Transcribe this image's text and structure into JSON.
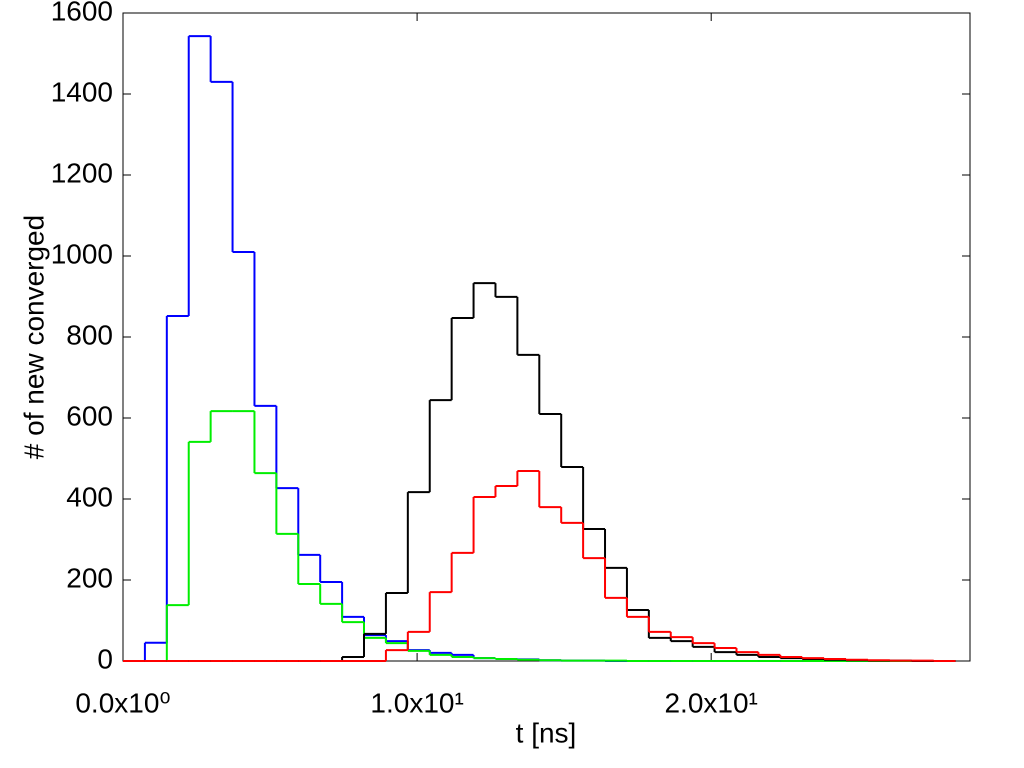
{
  "chart_data": {
    "type": "histogram",
    "xlabel": "t [ns]",
    "ylabel": "# of new converged",
    "bins": [
      0,
      0.745,
      1.49,
      2.235,
      2.98,
      3.725,
      4.47,
      5.215,
      5.96,
      6.705,
      7.45,
      8.195,
      8.94,
      9.685,
      10.43,
      11.175,
      11.92,
      12.665,
      13.41,
      14.155,
      14.9,
      15.645,
      16.39,
      17.135,
      17.88,
      18.625,
      19.37,
      20.115,
      20.86,
      21.605,
      22.35,
      23.095,
      23.84,
      24.585,
      25.33,
      26.075,
      26.82,
      27.565,
      28.31
    ],
    "series": [
      {
        "color": "#0000ff",
        "values": [
          0,
          45,
          852,
          1543,
          1430,
          1010,
          630,
          427,
          262,
          195,
          109,
          64,
          49,
          27,
          20,
          15,
          7,
          5,
          4,
          2,
          1,
          1,
          0,
          0,
          0,
          0,
          0,
          0,
          0,
          0,
          0,
          0,
          0,
          0,
          0,
          0,
          0,
          0
        ]
      },
      {
        "color": "#00ee00",
        "values": [
          0,
          0,
          138,
          541,
          617,
          617,
          464,
          314,
          190,
          141,
          96,
          57,
          44,
          25,
          15,
          10,
          7,
          5,
          3,
          2,
          1,
          1,
          1,
          0,
          0,
          0,
          0,
          0,
          0,
          0,
          0,
          0,
          0,
          0,
          0,
          0,
          0,
          0
        ]
      },
      {
        "color": "#000000",
        "values": [
          0,
          0,
          0,
          0,
          0,
          0,
          0,
          0,
          0,
          0,
          10,
          67,
          168,
          417,
          644,
          847,
          933,
          899,
          756,
          610,
          479,
          326,
          230,
          126,
          57,
          49,
          35,
          22,
          15,
          10,
          7,
          5,
          3,
          2,
          1,
          1,
          0,
          0
        ]
      },
      {
        "color": "#ff0000",
        "values": [
          0,
          0,
          0,
          0,
          0,
          0,
          0,
          0,
          0,
          0,
          0,
          0,
          27,
          72,
          170,
          267,
          405,
          432,
          469,
          380,
          341,
          254,
          156,
          109,
          72,
          59,
          44,
          32,
          22,
          15,
          10,
          7,
          5,
          3,
          2,
          1,
          1,
          0
        ]
      }
    ],
    "xlim": [
      0,
      28.8
    ],
    "ylim": [
      0,
      1600
    ],
    "xticks": [
      {
        "value": 0,
        "label": "0.0x10⁰"
      },
      {
        "value": 10,
        "label": "1.0x10¹"
      },
      {
        "value": 20,
        "label": "2.0x10¹"
      }
    ],
    "yticks": [
      0,
      200,
      400,
      600,
      800,
      1000,
      1200,
      1400,
      1600
    ]
  }
}
